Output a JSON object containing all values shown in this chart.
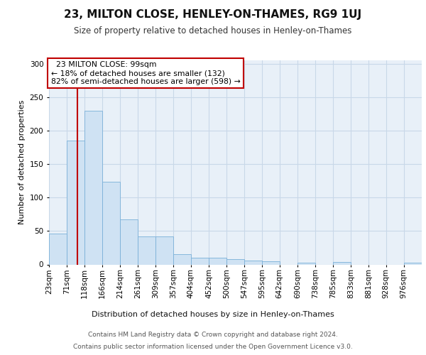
{
  "title": "23, MILTON CLOSE, HENLEY-ON-THAMES, RG9 1UJ",
  "subtitle": "Size of property relative to detached houses in Henley-on-Thames",
  "xlabel": "Distribution of detached houses by size in Henley-on-Thames",
  "ylabel": "Number of detached properties",
  "annotation_line1": "  23 MILTON CLOSE: 99sqm  ",
  "annotation_line2": "← 18% of detached houses are smaller (132)",
  "annotation_line3": "82% of semi-detached houses are larger (598) →",
  "bar_color": "#cfe2f3",
  "bar_edge_color": "#7ab0d8",
  "vline_color": "#c00000",
  "vline_x": 99,
  "categories": [
    "23sqm",
    "71sqm",
    "118sqm",
    "166sqm",
    "214sqm",
    "261sqm",
    "309sqm",
    "357sqm",
    "404sqm",
    "452sqm",
    "500sqm",
    "547sqm",
    "595sqm",
    "642sqm",
    "690sqm",
    "738sqm",
    "785sqm",
    "833sqm",
    "881sqm",
    "928sqm",
    "976sqm"
  ],
  "bin_edges": [
    23,
    71,
    118,
    166,
    214,
    261,
    309,
    357,
    404,
    452,
    500,
    547,
    595,
    642,
    690,
    738,
    785,
    833,
    881,
    928,
    976,
    1024
  ],
  "values": [
    46,
    185,
    230,
    124,
    67,
    42,
    42,
    15,
    10,
    10,
    8,
    6,
    5,
    0,
    3,
    0,
    4,
    0,
    0,
    0,
    3
  ],
  "ylim": [
    0,
    305
  ],
  "yticks": [
    0,
    50,
    100,
    150,
    200,
    250,
    300
  ],
  "footer_line1": "Contains HM Land Registry data © Crown copyright and database right 2024.",
  "footer_line2": "Contains public sector information licensed under the Open Government Licence v3.0.",
  "bg_color": "#ffffff",
  "plot_bg_color": "#e8f0f8",
  "grid_color": "#c8d8e8",
  "annotation_box_color": "#ffffff",
  "annotation_box_edge": "#c00000",
  "title_fontsize": 11,
  "subtitle_fontsize": 8.5,
  "ylabel_fontsize": 8,
  "xlabel_fontsize": 8,
  "tick_fontsize": 7.5,
  "footer_fontsize": 6.5,
  "ann_fontsize": 7.8
}
